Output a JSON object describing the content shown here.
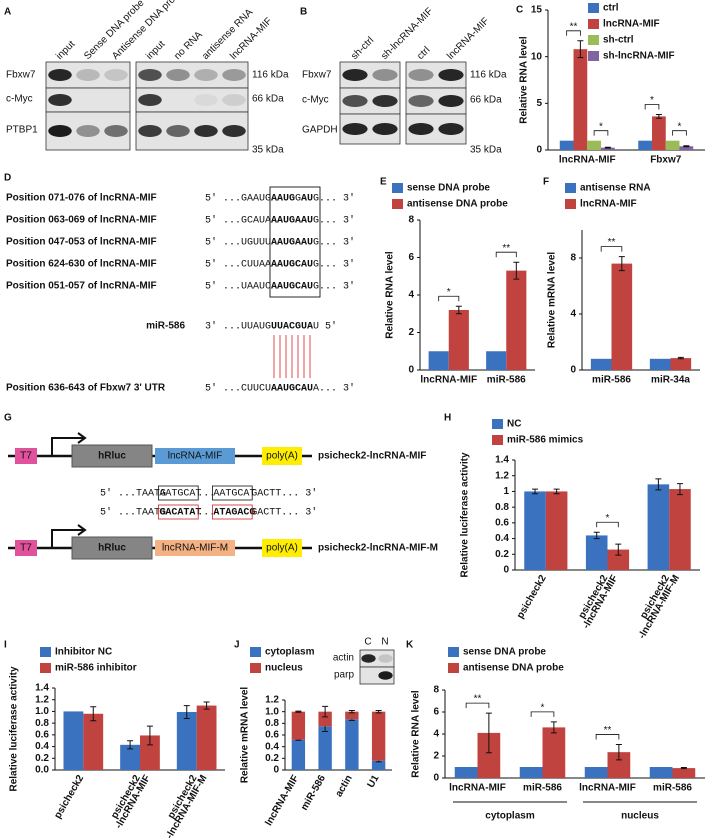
{
  "panels": {
    "A": {
      "label": "A",
      "lanes_left": [
        "input",
        "Sense DNA probe",
        "Antisense DNA probe"
      ],
      "lanes_right": [
        "input",
        "no RNA",
        "antisense RNA",
        "lncRNA-MIF"
      ],
      "rows": [
        "Fbxw7",
        "c-Myc",
        "PTBP1"
      ],
      "markers": [
        "116 kDa",
        "66 kDa",
        "35 kDa"
      ]
    },
    "B": {
      "label": "B",
      "lanes_left": [
        "sh-ctrl",
        "sh-lncRNA-MIF"
      ],
      "lanes_right": [
        "ctrl",
        "lncRNA-MIF"
      ],
      "rows": [
        "Fbxw7",
        "c-Myc",
        "GAPDH"
      ],
      "markers": [
        "116 kDa",
        "66 kDa",
        "35 kDa"
      ]
    },
    "D": {
      "label": "D",
      "rows": [
        {
          "name": "Position 071-076 of lncRNA-MIF",
          "seq": [
            "5' ...GAAUG",
            "AAUG",
            "G",
            "AU",
            "G... 3'"
          ]
        },
        {
          "name": "Position 063-069 of lncRNA-MIF",
          "seq": [
            "5' ...GCAUA",
            "AAUGAAU",
            "G... 3'"
          ]
        },
        {
          "name": "Position 047-053 of lncRNA-MIF",
          "seq": [
            "5' ...UGUUU",
            "AAUGAAU",
            "G... 3'"
          ]
        },
        {
          "name": "Position 624-630 of lncRNA-MIF",
          "seq": [
            "5' ...CUUAA",
            "AAUGCAU",
            "G... 3'"
          ]
        },
        {
          "name": "Position 051-057 of lncRNA-MIF",
          "seq": [
            "5' ...UAAUC",
            "AAUGCAU",
            "G... 3'"
          ]
        }
      ],
      "mir": {
        "name": "miR-586",
        "seq": [
          "3' ...UUAUG",
          "UUACGUA",
          "U 5'"
        ]
      },
      "target": {
        "name": "Position 636-643 of Fbxw7 3' UTR",
        "seq": [
          "5' ...CUUCU",
          "AAUGCAU",
          "A... 3'"
        ]
      }
    },
    "G": {
      "label": "G",
      "promoter": "T7",
      "reporter": "hRluc",
      "polya": "poly(A)",
      "constructs": [
        {
          "insert": "lncRNA-MIF",
          "name": "psicheck2-lncRNA-MIF"
        },
        {
          "insert": "lncRNA-MIF-M",
          "name": "psicheck2-lncRNA-MIF-M"
        }
      ],
      "wild": [
        "5' ...TAATG",
        "AATGCAT",
        "...",
        "AATGCAT",
        "GACTT... 3'"
      ],
      "mutant": [
        "5' ...TAATG",
        "GACATAT",
        "...",
        "ATAGACG",
        "GACTT... 3'"
      ]
    },
    "J_blot": {
      "lanes": [
        "C",
        "N"
      ],
      "rows": [
        "actin",
        "parp"
      ]
    }
  },
  "chart_data": [
    {
      "type": "bar",
      "label": "C",
      "y_label": "Relative RNA level",
      "categories": [
        "lncRNA-MIF",
        "Fbxw7"
      ],
      "series": [
        {
          "name": "ctrl",
          "color": "#3b72c0",
          "values": [
            1,
            1
          ],
          "errors": [
            0,
            0
          ]
        },
        {
          "name": "lncRNA-MIF",
          "color": "#c0433f",
          "values": [
            10.8,
            3.6
          ],
          "errors": [
            0.9,
            0.2
          ]
        },
        {
          "name": "sh-ctrl",
          "color": "#9bbb59",
          "values": [
            1,
            1
          ],
          "errors": [
            0,
            0
          ]
        },
        {
          "name": "sh-lncRNA-MIF",
          "color": "#8064a2",
          "values": [
            0.25,
            0.4
          ],
          "errors": [
            0.05,
            0.05
          ]
        }
      ],
      "ylim": [
        0,
        15
      ],
      "yticks": [
        0,
        5,
        10,
        15
      ],
      "annotations": [
        "**",
        "*",
        "*",
        "*"
      ]
    },
    {
      "type": "bar",
      "label": "E",
      "y_label": "Relative RNA level",
      "categories": [
        "lncRNA-MIF",
        "miR-586"
      ],
      "series": [
        {
          "name": "sense DNA probe",
          "color": "#3b72c0",
          "values": [
            1,
            1
          ],
          "errors": [
            0,
            0
          ]
        },
        {
          "name": "antisense DNA probe",
          "color": "#c0433f",
          "values": [
            3.2,
            5.3
          ],
          "errors": [
            0.2,
            0.45
          ]
        }
      ],
      "ylim": [
        0,
        8
      ],
      "yticks": [
        0,
        2,
        4,
        6,
        8
      ],
      "annotations": [
        "*",
        "**"
      ]
    },
    {
      "type": "bar",
      "label": "F",
      "y_label": "Relative mRNA level",
      "categories": [
        "miR-586",
        "miR-34a"
      ],
      "series": [
        {
          "name": "antisense RNA",
          "color": "#3b72c0",
          "values": [
            0.8,
            0.8
          ],
          "errors": [
            0,
            0
          ]
        },
        {
          "name": "lncRNA-MIF",
          "color": "#c0433f",
          "values": [
            7.6,
            0.85
          ],
          "errors": [
            0.5,
            0.05
          ]
        }
      ],
      "ylim": [
        0,
        10
      ],
      "yticks": [
        0,
        4,
        8
      ],
      "annotations": [
        "**"
      ]
    },
    {
      "type": "bar",
      "label": "H",
      "y_label": "Relative luciferase activity",
      "categories": [
        [
          "psicheck2"
        ],
        [
          "psicheck2",
          "-lncRNA-MIF"
        ],
        [
          "psicheck2",
          "-lncRNA-MIF-M"
        ]
      ],
      "series": [
        {
          "name": "NC",
          "color": "#3b72c0",
          "values": [
            1,
            0.44,
            1.09
          ],
          "errors": [
            0.03,
            0.04,
            0.07
          ]
        },
        {
          "name": "miR-586 mimics",
          "color": "#c0433f",
          "values": [
            1,
            0.26,
            1.03
          ],
          "errors": [
            0.03,
            0.07,
            0.07
          ]
        }
      ],
      "ylim": [
        0,
        1.4
      ],
      "yticks": [
        0,
        0.2,
        0.4,
        0.6,
        0.8,
        1,
        1.2,
        1.4
      ],
      "annotations": [
        "*"
      ]
    },
    {
      "type": "bar",
      "label": "I",
      "y_label": "Relative luciferase activity",
      "categories": [
        [
          "psicheck2"
        ],
        [
          "psicheck2",
          "-lncRNA-MIF"
        ],
        [
          "psicheck2",
          "-lncRNA-MIF-M"
        ]
      ],
      "series": [
        {
          "name": "Inhibitor NC",
          "color": "#3b72c0",
          "values": [
            1,
            0.43,
            0.99
          ],
          "errors": [
            0,
            0.07,
            0.11
          ]
        },
        {
          "name": "miR-586 inhibitor",
          "color": "#c0433f",
          "values": [
            0.96,
            0.59,
            1.1
          ],
          "errors": [
            0.12,
            0.16,
            0.06
          ]
        }
      ],
      "ylim": [
        0,
        1.4
      ],
      "yticks": [
        {
          "value": 0,
          "label": "0.0"
        },
        0.2,
        0.4,
        0.6,
        0.8,
        {
          "value": 1,
          "label": "1.0"
        },
        1.2,
        1.4
      ]
    },
    {
      "type": "stacked-bar",
      "label": "J",
      "y_label": "Relative mRNA level",
      "categories": [
        [
          "lncRNA-MIF"
        ],
        [
          "miR-586"
        ],
        [
          "actin"
        ],
        [
          "U1"
        ]
      ],
      "series": [
        {
          "name": "cytoplasm",
          "color": "#3b72c0",
          "values": [
            0.52,
            0.75,
            0.87,
            0.16
          ],
          "errors": [
            0.01,
            0.09,
            0.02,
            0.02
          ]
        },
        {
          "name": "nucleus",
          "color": "#c0433f",
          "values": [
            0.48,
            0.25,
            0.13,
            0.84
          ],
          "errors": [
            0.01,
            0.09,
            0.02,
            0.02
          ]
        }
      ],
      "ylim": [
        0,
        1.2
      ],
      "yticks": [
        0,
        0.2,
        0.4,
        0.6,
        0.8,
        {
          "value": 1,
          "label": "1.0"
        },
        1.2
      ]
    },
    {
      "type": "bar",
      "label": "K",
      "y_label": "Relative RNA level",
      "categories": [
        "lncRNA-MIF",
        "miR-586",
        "lncRNA-MIF",
        "miR-586"
      ],
      "groups": [
        "cytoplasm",
        "nucleus"
      ],
      "series": [
        {
          "name": "sense DNA probe",
          "color": "#3b72c0",
          "values": [
            1,
            1,
            1,
            1
          ],
          "errors": [
            0,
            0,
            0,
            0
          ]
        },
        {
          "name": "antisense DNA probe",
          "color": "#c0433f",
          "values": [
            4.1,
            4.6,
            2.35,
            0.9
          ],
          "errors": [
            1.8,
            0.5,
            0.7,
            0.05
          ]
        }
      ],
      "ylim": [
        0,
        8
      ],
      "yticks": [
        0,
        2,
        4,
        6,
        8
      ],
      "annotations": [
        "**",
        "*",
        "**"
      ]
    }
  ]
}
